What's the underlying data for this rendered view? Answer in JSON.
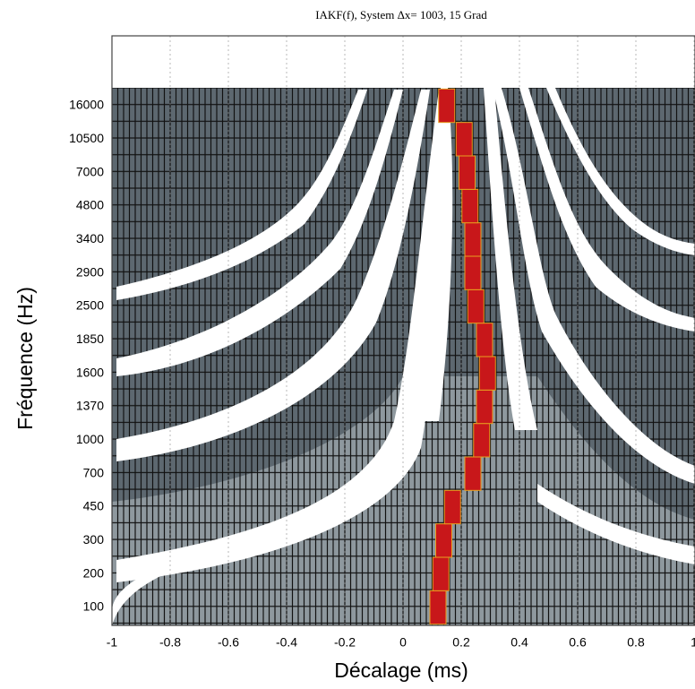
{
  "chart_data": {
    "type": "peak-map",
    "title": "IAKF(f),  System Δx= 1003,   15 Grad",
    "x_label": "Décalage (ms)",
    "y_label": "Fréquence (Hz)",
    "categories": [
      "100",
      "200",
      "300",
      "450",
      "700",
      "1000",
      "1370",
      "1600",
      "1850",
      "2500",
      "2900",
      "3400",
      "4800",
      "7000",
      "10500",
      "16000"
    ],
    "values": [
      0.12,
      0.13,
      0.14,
      0.17,
      0.24,
      0.27,
      0.28,
      0.29,
      0.28,
      0.25,
      0.24,
      0.24,
      0.23,
      0.22,
      0.21,
      0.15
    ],
    "color": "#c8171a",
    "xlim": [
      -1,
      1
    ],
    "xticks": [
      -1,
      -0.8,
      -0.6,
      -0.4,
      -0.2,
      0,
      0.2,
      0.4,
      0.6,
      0.8,
      1
    ],
    "grid": true
  }
}
